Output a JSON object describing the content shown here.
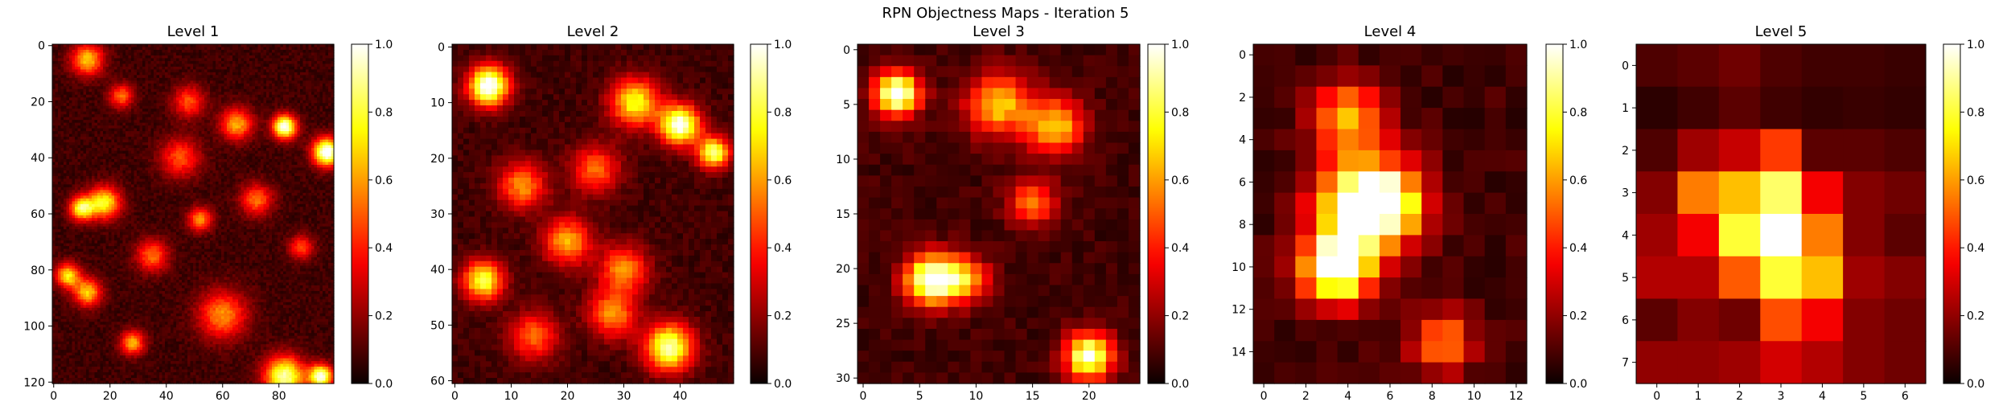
{
  "figure": {
    "suptitle": "RPN Objectness Maps - Iteration 5"
  },
  "chart_data": [
    {
      "type": "heatmap",
      "title": "Level 1",
      "grid_size": {
        "rows": 121,
        "cols": 100
      },
      "xlim": [
        0,
        99
      ],
      "ylim": [
        120,
        0
      ],
      "x_ticks": [
        0,
        20,
        40,
        60,
        80
      ],
      "y_ticks": [
        0,
        20,
        40,
        60,
        80,
        100,
        120
      ],
      "colormap": "hot",
      "colorbar": {
        "range": [
          0,
          1
        ],
        "ticks": [
          "0.0",
          "0.2",
          "0.4",
          "0.6",
          "0.8",
          "1.0"
        ]
      },
      "hotspots": [
        {
          "x": 97,
          "y": 38,
          "v": 1.0,
          "s": 3.5
        },
        {
          "x": 82,
          "y": 29,
          "v": 0.95,
          "s": 3
        },
        {
          "x": 10,
          "y": 58,
          "v": 0.75,
          "s": 3
        },
        {
          "x": 18,
          "y": 56,
          "v": 0.7,
          "s": 4
        },
        {
          "x": 5,
          "y": 82,
          "v": 0.65,
          "s": 3
        },
        {
          "x": 12,
          "y": 88,
          "v": 0.6,
          "s": 3.5
        },
        {
          "x": 60,
          "y": 96,
          "v": 0.5,
          "s": 6
        },
        {
          "x": 82,
          "y": 118,
          "v": 0.85,
          "s": 5
        },
        {
          "x": 95,
          "y": 118,
          "v": 0.9,
          "s": 3
        },
        {
          "x": 12,
          "y": 5,
          "v": 0.6,
          "s": 4
        },
        {
          "x": 65,
          "y": 28,
          "v": 0.55,
          "s": 4
        },
        {
          "x": 45,
          "y": 40,
          "v": 0.4,
          "s": 5
        },
        {
          "x": 35,
          "y": 75,
          "v": 0.45,
          "s": 4
        },
        {
          "x": 52,
          "y": 62,
          "v": 0.5,
          "s": 3
        },
        {
          "x": 72,
          "y": 55,
          "v": 0.45,
          "s": 4
        },
        {
          "x": 28,
          "y": 106,
          "v": 0.55,
          "s": 3
        },
        {
          "x": 88,
          "y": 72,
          "v": 0.4,
          "s": 3
        },
        {
          "x": 24,
          "y": 18,
          "v": 0.45,
          "s": 3
        },
        {
          "x": 48,
          "y": 20,
          "v": 0.4,
          "s": 4
        }
      ]
    },
    {
      "type": "heatmap",
      "title": "Level 2",
      "grid_size": {
        "rows": 61,
        "cols": 50
      },
      "xlim": [
        0,
        49
      ],
      "ylim": [
        60,
        0
      ],
      "x_ticks": [
        0,
        10,
        20,
        30,
        40
      ],
      "y_ticks": [
        0,
        10,
        20,
        30,
        40,
        50,
        60
      ],
      "colormap": "hot",
      "colorbar": {
        "range": [
          0,
          1
        ],
        "ticks": [
          "0.0",
          "0.2",
          "0.4",
          "0.6",
          "0.8",
          "1.0"
        ]
      },
      "hotspots": [
        {
          "x": 6,
          "y": 7,
          "v": 1.0,
          "s": 2.5
        },
        {
          "x": 40,
          "y": 14,
          "v": 0.95,
          "s": 2.5
        },
        {
          "x": 32,
          "y": 10,
          "v": 0.7,
          "s": 3
        },
        {
          "x": 46,
          "y": 19,
          "v": 0.8,
          "s": 2
        },
        {
          "x": 38,
          "y": 54,
          "v": 0.85,
          "s": 3
        },
        {
          "x": 5,
          "y": 42,
          "v": 0.75,
          "s": 2.5
        },
        {
          "x": 20,
          "y": 35,
          "v": 0.55,
          "s": 3
        },
        {
          "x": 30,
          "y": 40,
          "v": 0.5,
          "s": 3
        },
        {
          "x": 12,
          "y": 25,
          "v": 0.5,
          "s": 3
        },
        {
          "x": 25,
          "y": 22,
          "v": 0.45,
          "s": 3
        },
        {
          "x": 28,
          "y": 48,
          "v": 0.5,
          "s": 3
        },
        {
          "x": 14,
          "y": 52,
          "v": 0.45,
          "s": 3
        }
      ]
    },
    {
      "type": "heatmap",
      "title": "Level 3",
      "grid_size": {
        "rows": 31,
        "cols": 25
      },
      "xlim": [
        0,
        24
      ],
      "ylim": [
        30,
        0
      ],
      "x_ticks": [
        0,
        5,
        10,
        15,
        20
      ],
      "y_ticks": [
        0,
        5,
        10,
        15,
        20,
        25,
        30
      ],
      "colormap": "hot",
      "colorbar": {
        "range": [
          0,
          1
        ],
        "ticks": [
          "0.0",
          "0.2",
          "0.4",
          "0.6",
          "0.8",
          "1.0"
        ]
      },
      "hotspots": [
        {
          "x": 3,
          "y": 4,
          "v": 1.0,
          "s": 1.4
        },
        {
          "x": 6,
          "y": 21,
          "v": 0.95,
          "s": 1.6
        },
        {
          "x": 20,
          "y": 28,
          "v": 0.9,
          "s": 1.5
        },
        {
          "x": 12,
          "y": 5,
          "v": 0.6,
          "s": 2
        },
        {
          "x": 17,
          "y": 7,
          "v": 0.6,
          "s": 1.8
        },
        {
          "x": 9,
          "y": 21,
          "v": 0.55,
          "s": 1.5
        },
        {
          "x": 15,
          "y": 14,
          "v": 0.45,
          "s": 1.5
        }
      ]
    },
    {
      "type": "heatmap",
      "title": "Level 4",
      "grid_size": {
        "rows": 16,
        "cols": 13
      },
      "xlim": [
        0,
        12
      ],
      "ylim": [
        15,
        0
      ],
      "x_ticks": [
        0,
        2,
        4,
        6,
        8,
        10,
        12
      ],
      "y_ticks": [
        0,
        2,
        4,
        6,
        8,
        10,
        12,
        14
      ],
      "colormap": "hot",
      "colorbar": {
        "range": [
          0,
          1
        ],
        "ticks": [
          "0.0",
          "0.2",
          "0.4",
          "0.6",
          "0.8",
          "1.0"
        ]
      },
      "hotspots": [
        {
          "x": 3.5,
          "y": 10,
          "v": 1.0,
          "s": 1.2
        },
        {
          "x": 4.5,
          "y": 7,
          "v": 0.8,
          "s": 1.5
        },
        {
          "x": 4,
          "y": 3,
          "v": 0.55,
          "s": 1.2
        },
        {
          "x": 6,
          "y": 7,
          "v": 0.6,
          "s": 1.3
        },
        {
          "x": 8.5,
          "y": 13.5,
          "v": 0.5,
          "s": 1
        }
      ]
    },
    {
      "type": "heatmap",
      "title": "Level 5",
      "grid_size": {
        "rows": 8,
        "cols": 7
      },
      "xlim": [
        0,
        6
      ],
      "ylim": [
        7,
        0
      ],
      "x_ticks": [
        0,
        1,
        2,
        3,
        4,
        5,
        6
      ],
      "y_ticks": [
        0,
        1,
        2,
        3,
        4,
        5,
        6,
        7
      ],
      "colormap": "hot",
      "colorbar": {
        "range": [
          0,
          1
        ],
        "ticks": [
          "0.0",
          "0.2",
          "0.4",
          "0.6",
          "0.8",
          "1.0"
        ]
      },
      "values": [
        [
          0.1,
          0.12,
          0.15,
          0.1,
          0.08,
          0.08,
          0.07
        ],
        [
          0.05,
          0.08,
          0.12,
          0.08,
          0.06,
          0.07,
          0.06
        ],
        [
          0.1,
          0.22,
          0.28,
          0.45,
          0.12,
          0.12,
          0.1
        ],
        [
          0.18,
          0.55,
          0.65,
          0.85,
          0.35,
          0.18,
          0.15
        ],
        [
          0.22,
          0.35,
          0.8,
          1.0,
          0.55,
          0.18,
          0.12
        ],
        [
          0.25,
          0.25,
          0.5,
          0.8,
          0.65,
          0.22,
          0.18
        ],
        [
          0.12,
          0.18,
          0.15,
          0.48,
          0.35,
          0.18,
          0.15
        ],
        [
          0.2,
          0.2,
          0.22,
          0.3,
          0.25,
          0.18,
          0.15
        ]
      ]
    }
  ]
}
